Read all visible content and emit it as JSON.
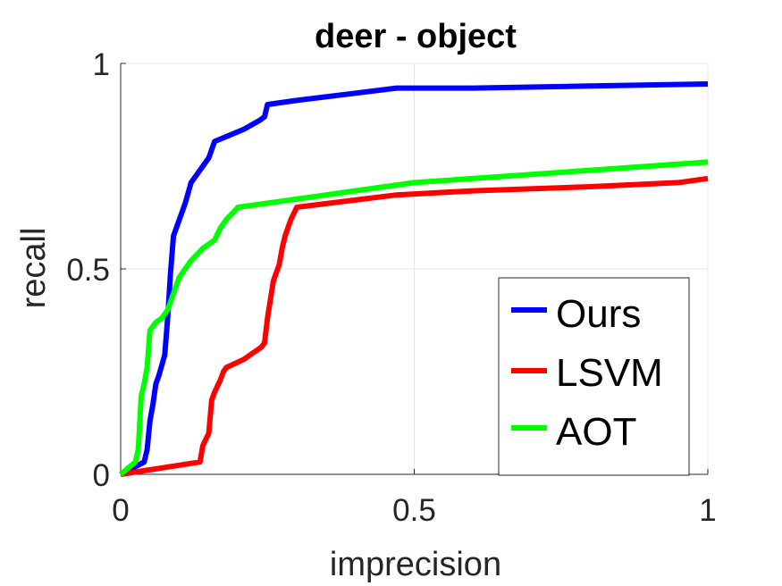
{
  "chart_data": {
    "type": "line",
    "title": "deer - object",
    "xlabel": "imprecision",
    "ylabel": "recall",
    "xlim": [
      0,
      1
    ],
    "ylim": [
      0,
      1
    ],
    "xticks": [
      0,
      0.5,
      1
    ],
    "xtick_labels": [
      "0",
      "0.5",
      "1"
    ],
    "yticks": [
      0,
      0.5,
      1
    ],
    "ytick_labels": [
      "0",
      "0.5",
      "1"
    ],
    "grid": true,
    "legend_position": "bottom-right",
    "series": [
      {
        "name": "Ours",
        "color": "#0000ff",
        "x": [
          0,
          0.04,
          0.045,
          0.05,
          0.055,
          0.06,
          0.065,
          0.075,
          0.08,
          0.085,
          0.09,
          0.095,
          0.11,
          0.12,
          0.13,
          0.15,
          0.16,
          0.21,
          0.235,
          0.245,
          0.25,
          0.3,
          0.47,
          0.6,
          0.8,
          1.0
        ],
        "y": [
          0,
          0.03,
          0.06,
          0.13,
          0.17,
          0.22,
          0.24,
          0.29,
          0.38,
          0.49,
          0.58,
          0.6,
          0.66,
          0.71,
          0.73,
          0.77,
          0.81,
          0.84,
          0.86,
          0.87,
          0.9,
          0.91,
          0.94,
          0.94,
          0.945,
          0.95
        ]
      },
      {
        "name": "LSVM",
        "color": "#ff0000",
        "x": [
          0,
          0.135,
          0.14,
          0.15,
          0.155,
          0.16,
          0.17,
          0.175,
          0.18,
          0.21,
          0.22,
          0.24,
          0.245,
          0.25,
          0.26,
          0.27,
          0.275,
          0.28,
          0.285,
          0.29,
          0.3,
          0.47,
          0.6,
          0.8,
          0.95,
          1.0
        ],
        "y": [
          0,
          0.03,
          0.07,
          0.1,
          0.18,
          0.2,
          0.23,
          0.25,
          0.26,
          0.28,
          0.29,
          0.31,
          0.32,
          0.38,
          0.47,
          0.51,
          0.55,
          0.58,
          0.6,
          0.62,
          0.65,
          0.68,
          0.69,
          0.7,
          0.71,
          0.72
        ]
      },
      {
        "name": "AOT",
        "color": "#00ff00",
        "x": [
          0,
          0.025,
          0.03,
          0.035,
          0.04,
          0.045,
          0.05,
          0.06,
          0.07,
          0.08,
          0.1,
          0.12,
          0.14,
          0.16,
          0.17,
          0.18,
          0.2,
          0.3,
          0.5,
          0.7,
          0.8,
          1.0
        ],
        "y": [
          0,
          0.03,
          0.06,
          0.19,
          0.22,
          0.26,
          0.35,
          0.37,
          0.38,
          0.4,
          0.48,
          0.52,
          0.55,
          0.57,
          0.6,
          0.62,
          0.65,
          0.67,
          0.71,
          0.73,
          0.74,
          0.76
        ]
      }
    ]
  }
}
